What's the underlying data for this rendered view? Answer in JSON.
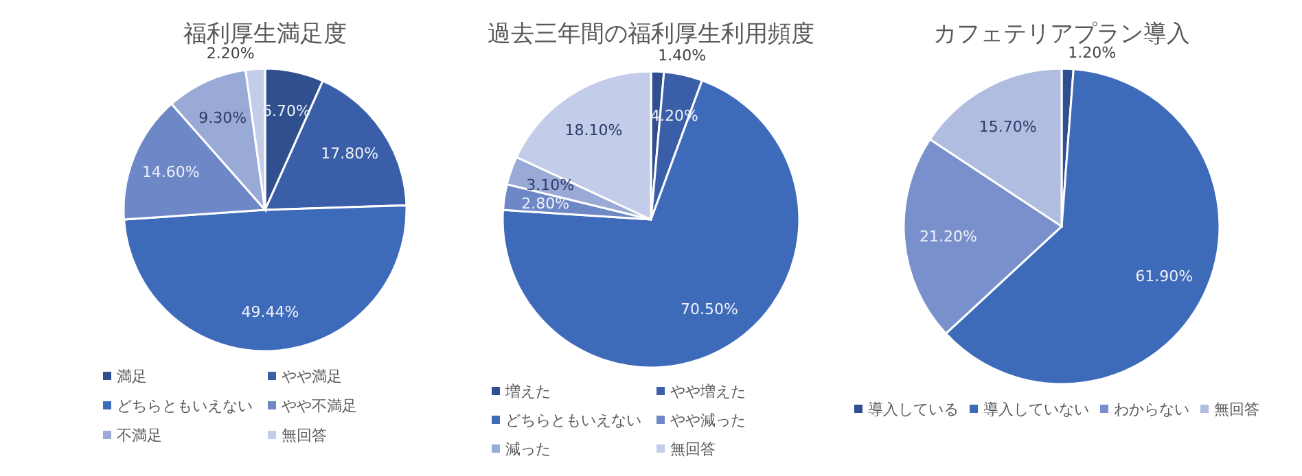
{
  "chart_data": [
    {
      "type": "pie",
      "title": "福利厚生満足度",
      "categories": [
        "満足",
        "やや満足",
        "どちらともいえない",
        "やや不満足",
        "不満足",
        "無回答"
      ],
      "values": [
        6.7,
        17.8,
        49.44,
        14.6,
        9.3,
        2.2
      ],
      "value_labels": [
        "6.70%",
        "17.80%",
        "49.44%",
        "14.60%",
        "9.30%",
        "2.20%"
      ],
      "colors": [
        "#2f4f8f",
        "#3a5ea8",
        "#3e6bb9",
        "#6d87c7",
        "#9aaad6",
        "#c3cce8"
      ],
      "legend": "bottom"
    },
    {
      "type": "pie",
      "title": "過去三年間の福利厚生利用頻度",
      "categories": [
        "増えた",
        "やや増えた",
        "どちらともいえない",
        "やや減った",
        "減った",
        "無回答"
      ],
      "values": [
        1.4,
        4.2,
        70.5,
        2.8,
        3.1,
        18.1
      ],
      "value_labels": [
        "1.40%",
        "4.20%",
        "70.50%",
        "2.80%",
        "3.10%",
        "18.10%"
      ],
      "colors": [
        "#2f4f8f",
        "#3a5ea8",
        "#3e6bb9",
        "#6d87c7",
        "#9aaad6",
        "#c3cce8"
      ],
      "legend": "bottom"
    },
    {
      "type": "pie",
      "title": "カフェテリアプラン導入",
      "categories": [
        "導入している",
        "導入していない",
        "わからない",
        "無回答"
      ],
      "values": [
        1.2,
        61.9,
        21.2,
        15.7
      ],
      "value_labels": [
        "1.20%",
        "61.90%",
        "21.20%",
        "15.70%"
      ],
      "colors": [
        "#2f4f8f",
        "#3e6bb9",
        "#7a90cc",
        "#b0bce0"
      ],
      "legend": "bottom"
    }
  ]
}
